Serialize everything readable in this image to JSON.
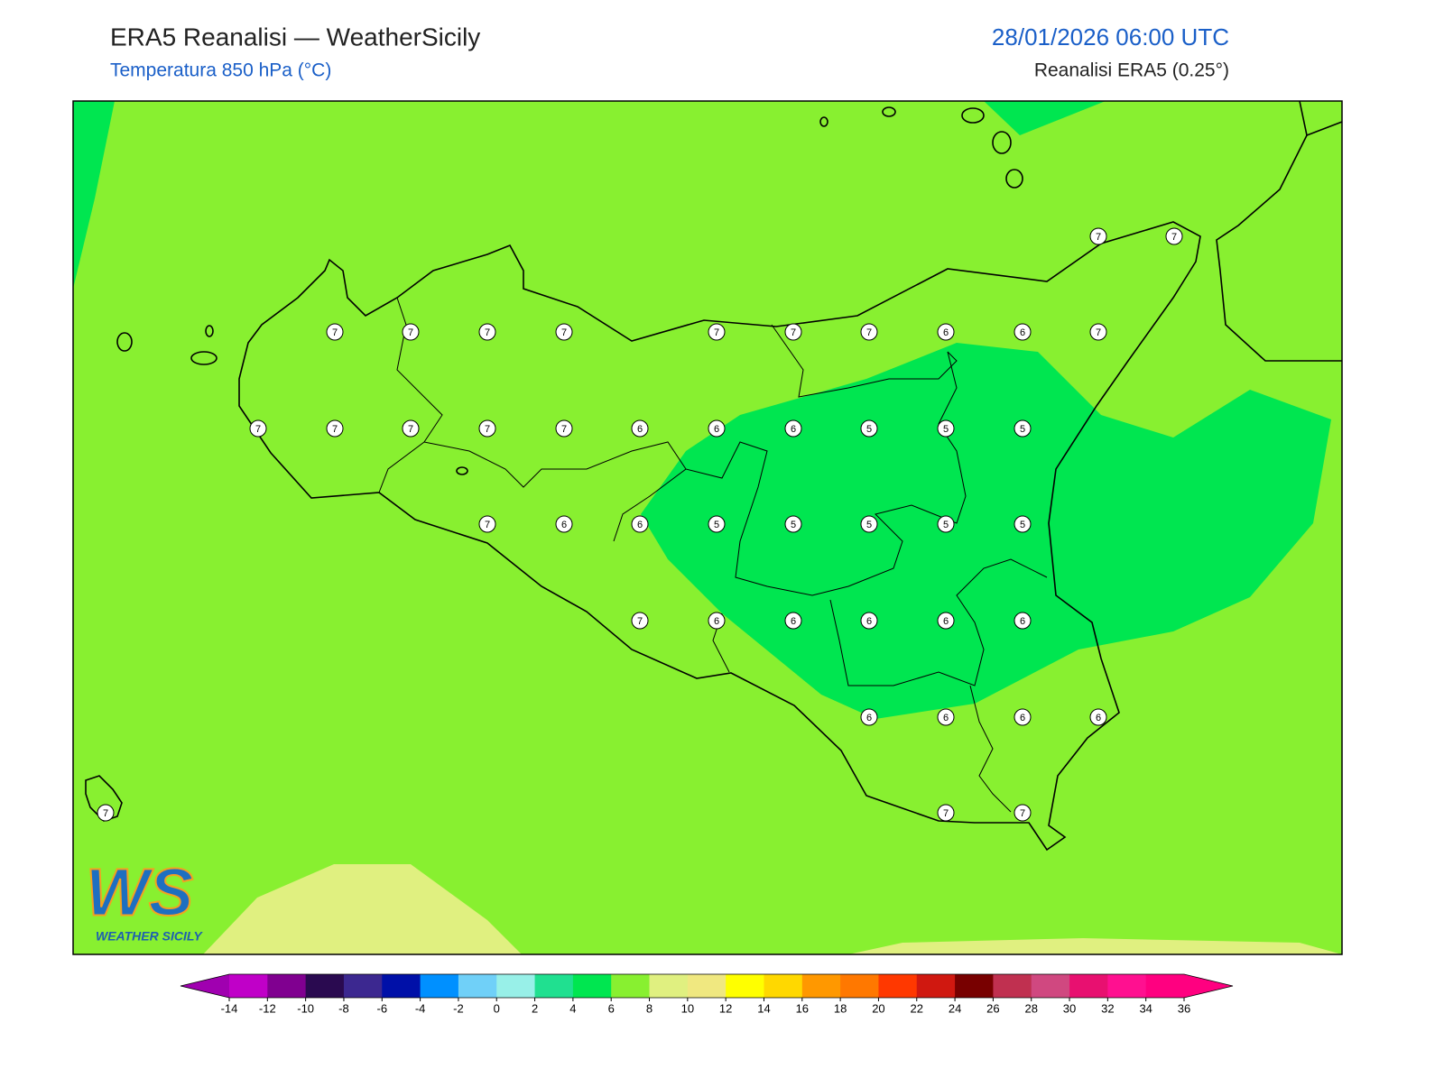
{
  "header": {
    "title": "ERA5 Reanalisi — WeatherSicily",
    "subtitle": "Temperatura 850 hPa (°C)",
    "datetime": "28/01/2026 06:00 UTC",
    "source": "Reanalisi ERA5 (0.25°)"
  },
  "stations": {
    "values": [
      7,
      7,
      7,
      7,
      7,
      7,
      7,
      7,
      7,
      6,
      6,
      7,
      7,
      7,
      7,
      7,
      7,
      6,
      6,
      6,
      5,
      5,
      5,
      7,
      6,
      6,
      5,
      5,
      5,
      5,
      5,
      7,
      6,
      6,
      6,
      6,
      6,
      6,
      6,
      6,
      6,
      7,
      7,
      7
    ]
  },
  "fields": {
    "base_color": "#88f030",
    "cool_color": "#00e650",
    "warm_color": "#e0f080"
  },
  "colorbar": {
    "ticks": [
      -14,
      -12,
      -10,
      -8,
      -6,
      -4,
      -2,
      0,
      2,
      4,
      6,
      8,
      10,
      12,
      14,
      16,
      18,
      20,
      22,
      24,
      26,
      28,
      30,
      32,
      34,
      36
    ],
    "under_color": "#a000b0",
    "over_color": "#ff0080",
    "colors": [
      "#c000c8",
      "#800090",
      "#2a0a50",
      "#3c2890",
      "#0010a8",
      "#0090ff",
      "#70d0f8",
      "#98f0e8",
      "#20e090",
      "#00e650",
      "#88f030",
      "#e0f080",
      "#f0e880",
      "#ffff00",
      "#ffd800",
      "#ff9800",
      "#ff7800",
      "#ff3800",
      "#d01810",
      "#780000",
      "#c03050",
      "#d04880",
      "#e81070",
      "#ff1090",
      "#ff0080"
    ]
  },
  "logo": {
    "mark": "WS",
    "text": "WEATHER SICILY"
  }
}
